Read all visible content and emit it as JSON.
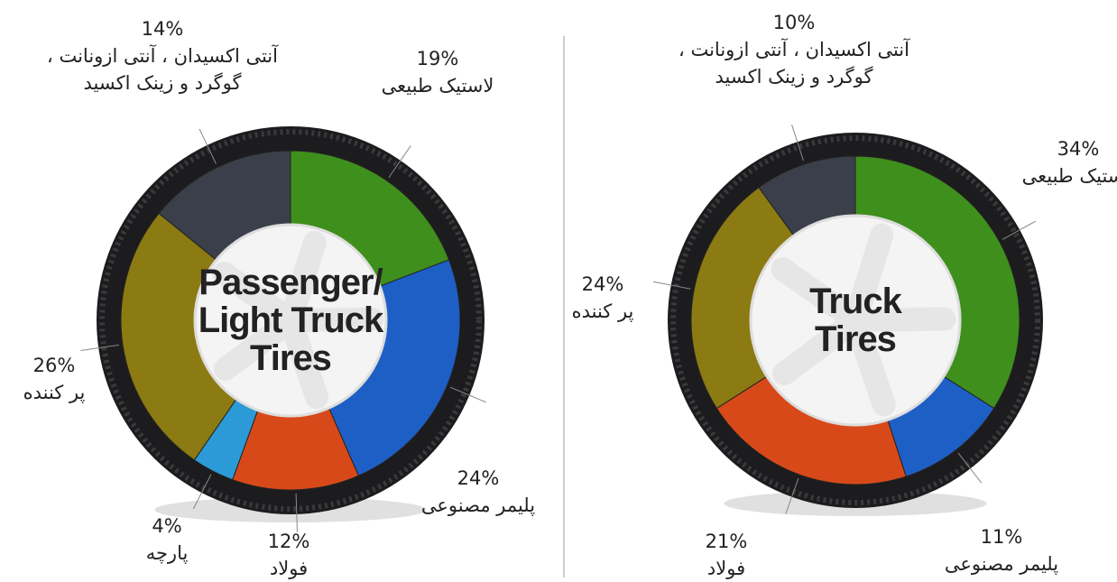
{
  "chart_data": [
    {
      "type": "donut",
      "title": "Passenger/ Light Truck Tires",
      "categories": [
        "لاستیک طبیعی",
        "پلیمر مصنوعی",
        "فولاد",
        "پارچه",
        "پر کننده",
        "آنتی اکسیدان ، آنتی ازونانت ، گوگرد و زینک اکسید"
      ],
      "values": [
        19,
        24,
        12,
        4,
        26,
        14
      ],
      "value_labels": [
        "19%",
        "24%",
        "12%",
        "4%",
        "26%",
        "14%"
      ],
      "colors": [
        "#3f8f1d",
        "#1e5fc6",
        "#d8491a",
        "#2b9ad6",
        "#8c7a12",
        "#3a3f49"
      ]
    },
    {
      "type": "donut",
      "title": "Truck Tires",
      "categories": [
        "لاستیک طبیعی",
        "پلیمر مصنوعی",
        "فولاد",
        "پر کننده",
        "آنتی اکسیدان ، آنتی ازونانت ، گوگرد و زینک اکسید"
      ],
      "values": [
        34,
        11,
        21,
        24,
        10
      ],
      "value_labels": [
        "34%",
        "11%",
        "21%",
        "24%",
        "10%"
      ],
      "colors": [
        "#3f8f1d",
        "#1e5fc6",
        "#d8491a",
        "#8c7a12",
        "#3a3f49"
      ]
    }
  ]
}
